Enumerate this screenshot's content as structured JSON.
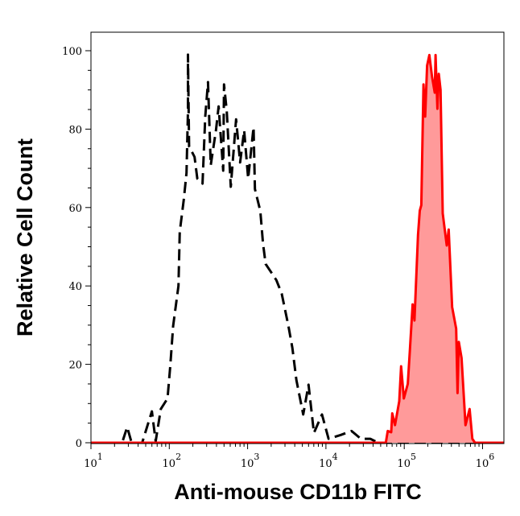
{
  "chart_data": {
    "type": "area",
    "xlabel": "Anti-mouse CD11b FITC",
    "ylabel": "Relative Cell Count",
    "x_scale": "log",
    "xlim": [
      10,
      1850000
    ],
    "ylim": [
      0,
      100
    ],
    "x_tick_labels": [
      {
        "base": "10",
        "exp": "1",
        "value": 10
      },
      {
        "base": "10",
        "exp": "2",
        "value": 100
      },
      {
        "base": "10",
        "exp": "3",
        "value": 1000
      },
      {
        "base": "10",
        "exp": "4",
        "value": 10000
      },
      {
        "base": "10",
        "exp": "5",
        "value": 100000
      },
      {
        "base": "10",
        "exp": "6",
        "value": 1000000
      }
    ],
    "y_ticks": [
      "0",
      "20",
      "40",
      "60",
      "80",
      "100"
    ],
    "grid": false,
    "series": [
      {
        "style": "dashed-line",
        "color": "#000000",
        "x": [
          10,
          25,
          29,
          33,
          45,
          60,
          67,
          78,
          95,
          103,
          112,
          131,
          136,
          153,
          166,
          173,
          173,
          179,
          210,
          228,
          266,
          288,
          312,
          338,
          395,
          427,
          488,
          500,
          542,
          610,
          713,
          803,
          904,
          1016,
          1191,
          1241,
          1452,
          1572,
          1700,
          2330,
          2730,
          3320,
          3730,
          4200,
          5130,
          6000,
          7030,
          8910,
          10800,
          15500,
          21200,
          27900,
          36800,
          46700,
          100000,
          1000000,
          1850000
        ],
        "y": [
          0,
          0,
          4,
          0,
          0,
          8,
          0.4,
          8.6,
          11.3,
          19.5,
          29.8,
          40,
          53.8,
          62,
          68.8,
          84.6,
          99,
          75.6,
          72.9,
          67.4,
          66.1,
          83.2,
          92,
          70.8,
          79.7,
          85.8,
          69.4,
          91.4,
          84.6,
          65.3,
          82.5,
          71.5,
          79.7,
          67.4,
          80.5,
          64.7,
          59.1,
          50.9,
          45.6,
          41.5,
          38,
          29.8,
          24.2,
          16,
          7.2,
          14.8,
          2.5,
          7.2,
          1,
          2,
          3,
          1,
          1,
          0,
          0,
          0,
          0
        ]
      },
      {
        "style": "filled-line",
        "color": "#ff0000",
        "fill": "#ff9a9a",
        "x": [
          10,
          58200,
          61500,
          68200,
          70300,
          76200,
          86300,
          91200,
          98900,
          111000,
          118000,
          128000,
          135000,
          150000,
          158000,
          165000,
          176000,
          185000,
          196000,
          209000,
          226000,
          245000,
          251000,
          265000,
          276000,
          291000,
          310000,
          349000,
          369000,
          409000,
          460000,
          479000,
          498000,
          539000,
          606000,
          683000,
          740000,
          800000,
          1850000
        ],
        "y": [
          0,
          0,
          3,
          2.7,
          7.5,
          4.5,
          10.6,
          19.5,
          11.3,
          15,
          23.6,
          35.3,
          31.2,
          53,
          59.2,
          60.6,
          91.4,
          83.2,
          96.2,
          98.9,
          93.4,
          89.3,
          98.9,
          85.2,
          94.1,
          90,
          58.5,
          50.3,
          54.4,
          34.6,
          29.1,
          12.7,
          25.7,
          21.6,
          4.5,
          8.6,
          1,
          0,
          0
        ]
      }
    ]
  }
}
